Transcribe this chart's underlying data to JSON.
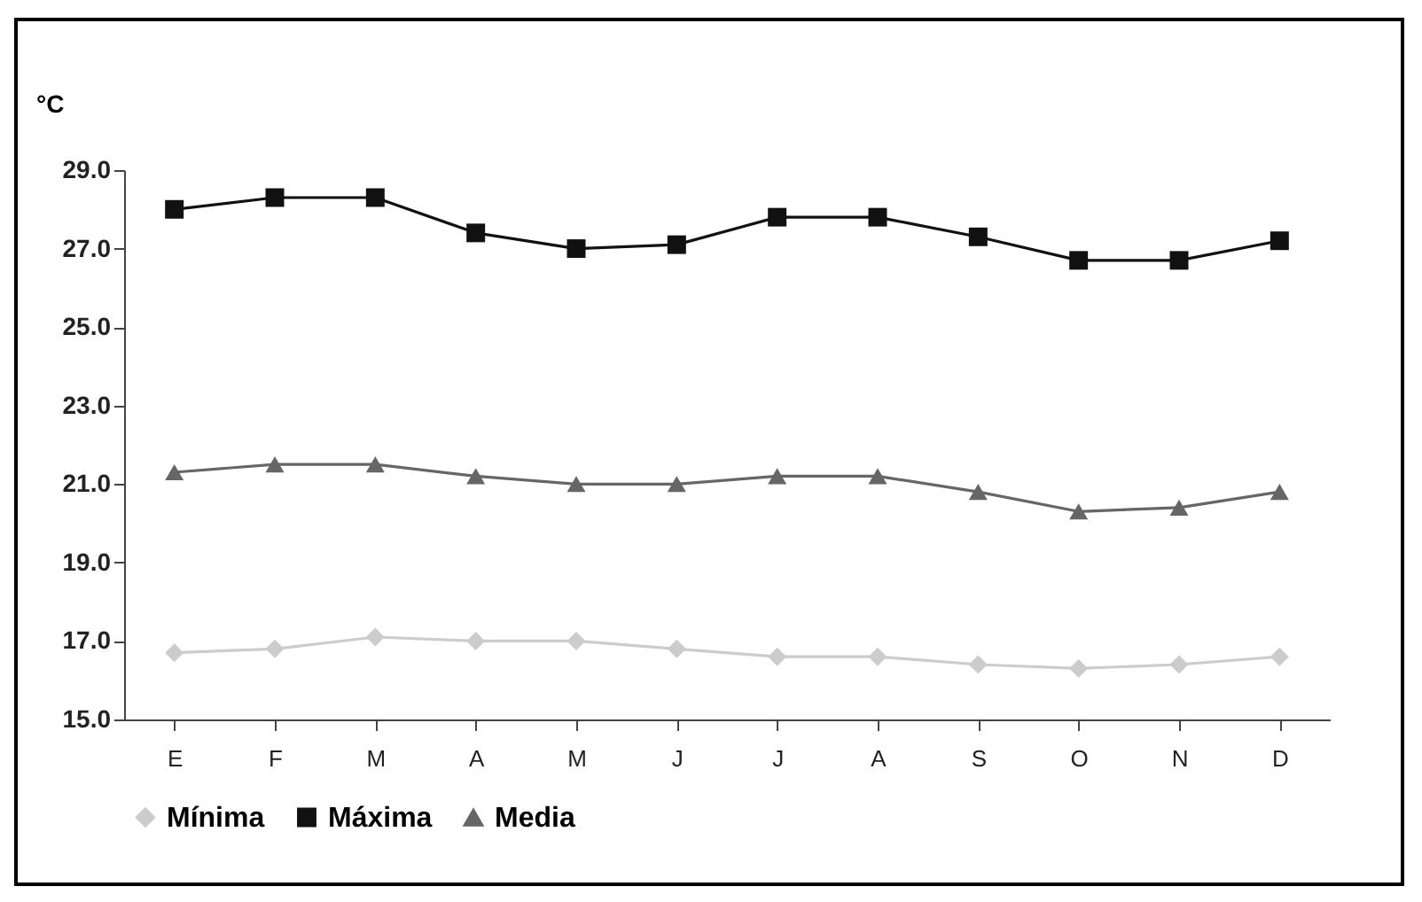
{
  "chart_data": {
    "type": "line",
    "ylabel": "°C",
    "categories": [
      "E",
      "F",
      "M",
      "A",
      "M",
      "J",
      "J",
      "A",
      "S",
      "O",
      "N",
      "D"
    ],
    "series": [
      {
        "name": "Mínima",
        "color": "#cccccc",
        "marker": "diamond",
        "values": [
          16.7,
          16.8,
          17.1,
          17.0,
          17.0,
          16.8,
          16.6,
          16.6,
          16.4,
          16.3,
          16.4,
          16.6
        ]
      },
      {
        "name": "Máxima",
        "color": "#111111",
        "marker": "square",
        "values": [
          28.0,
          28.3,
          28.3,
          27.4,
          27.0,
          27.1,
          27.8,
          27.8,
          27.3,
          26.7,
          26.7,
          27.2
        ]
      },
      {
        "name": "Media",
        "color": "#666666",
        "marker": "triangle",
        "values": [
          21.3,
          21.5,
          21.5,
          21.2,
          21.0,
          21.0,
          21.2,
          21.2,
          20.8,
          20.3,
          20.4,
          20.8
        ]
      }
    ],
    "ylim": [
      15,
      29
    ],
    "yticks": [
      {
        "value": 15,
        "label": "15.0"
      },
      {
        "value": 17,
        "label": "17.0"
      },
      {
        "value": 19,
        "label": "19.0"
      },
      {
        "value": 21,
        "label": "21.0"
      },
      {
        "value": 23,
        "label": "23.0"
      },
      {
        "value": 25,
        "label": "25.0"
      },
      {
        "value": 27,
        "label": "27.0"
      },
      {
        "value": 29,
        "label": "29.0"
      }
    ],
    "grid": false,
    "legend": "bottom",
    "line_style": "solid"
  }
}
